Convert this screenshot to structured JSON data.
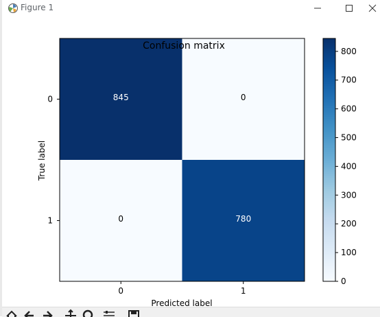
{
  "window": {
    "title": "Figure 1",
    "controls": [
      "minimize",
      "maximize",
      "close"
    ],
    "icon": "matplotlib-icon"
  },
  "toolbar": {
    "buttons": [
      "home-icon",
      "back-icon",
      "forward-icon",
      "pan-icon",
      "zoom-icon",
      "configure-subplots-icon",
      "save-icon"
    ]
  },
  "chart_data": {
    "type": "heatmap",
    "title": "Confusion matrix",
    "xlabel": "Predicted label",
    "ylabel": "True label",
    "x_categories": [
      "0",
      "1"
    ],
    "y_categories": [
      "0",
      "1"
    ],
    "values": [
      [
        845,
        0
      ],
      [
        0,
        780
      ]
    ],
    "colormap": "Blues",
    "vmin": 0,
    "vmax": 845,
    "colorbar_ticks": [
      0,
      100,
      200,
      300,
      400,
      500,
      600,
      700,
      800
    ],
    "colors": {
      "low": "#f7fbff",
      "high": "#08306b"
    }
  }
}
